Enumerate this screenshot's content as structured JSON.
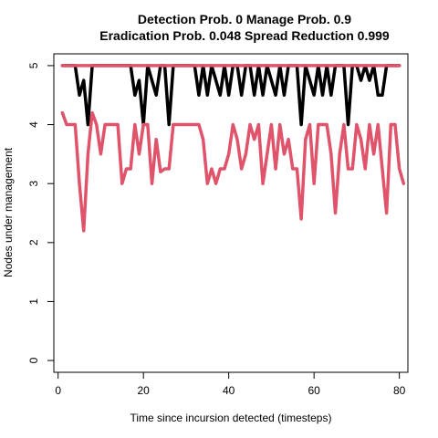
{
  "chart_data": {
    "type": "line",
    "title_lines": [
      "Detection Prob. 0 Manage Prob. 0.9",
      "Eradication Prob. 0.048 Spread Reduction 0.999"
    ],
    "xlabel": "Time since incursion detected (timesteps)",
    "ylabel": "Nodes under management",
    "xlim": [
      -1,
      82
    ],
    "ylim": [
      -0.2,
      5.2
    ],
    "x_ticks": [
      0,
      20,
      40,
      60,
      80
    ],
    "y_ticks": [
      0,
      1,
      2,
      3,
      4,
      5
    ],
    "grid": false,
    "legend": "none",
    "series": [
      {
        "color": "#000000",
        "values": [
          5,
          5,
          5,
          5,
          4.5,
          4.75,
          4,
          5,
          5,
          5,
          5,
          5,
          5,
          5,
          5,
          5,
          5,
          4.5,
          4.75,
          4,
          5,
          4.75,
          4.5,
          5,
          5,
          4,
          5,
          5,
          5,
          5,
          5,
          5,
          4.5,
          5,
          4.5,
          5,
          4.75,
          4.5,
          5,
          4.5,
          5,
          5,
          4.5,
          5,
          5,
          4.5,
          5,
          4.5,
          5,
          4.75,
          4.5,
          5,
          4.5,
          5,
          5,
          5,
          4,
          5,
          4.75,
          4.5,
          5,
          4.5,
          5,
          4.5,
          5,
          5,
          5,
          4,
          5,
          5,
          4.75,
          5,
          4.75,
          5,
          4.5,
          4.5,
          5,
          5,
          5,
          5
        ]
      },
      {
        "color": "#DF536B",
        "values": [
          4.2,
          4,
          4,
          4,
          3,
          2.2,
          3.5,
          4.2,
          4,
          3.5,
          4,
          4,
          4,
          4,
          3,
          3.25,
          3.25,
          4,
          3.5,
          4,
          4,
          3,
          3.75,
          3.2,
          3.25,
          3.25,
          4,
          4,
          4,
          4,
          4,
          4,
          4,
          3.75,
          3,
          3.25,
          3,
          3.25,
          3.25,
          3.5,
          4,
          3.75,
          3.25,
          3.5,
          4,
          3.75,
          4,
          3,
          3.5,
          4,
          3.25,
          4,
          3.5,
          3.75,
          3.25,
          3.25,
          2.4,
          3.75,
          4,
          3,
          4,
          4,
          4,
          3.5,
          2.5,
          3.5,
          4,
          3.25,
          3.25,
          4,
          3.75,
          3.25,
          4,
          3.5,
          4,
          3.25,
          2.5,
          4,
          4,
          3.25,
          3
        ]
      },
      {
        "color": "#DF536B",
        "values": [
          5,
          5,
          5,
          5,
          5,
          5,
          5,
          5,
          5,
          5,
          5,
          5,
          5,
          5,
          5,
          5,
          5,
          5,
          5,
          5,
          5,
          5,
          5,
          5,
          5,
          5,
          5,
          5,
          5,
          5,
          5,
          5,
          5,
          5,
          5,
          5,
          5,
          5,
          5,
          5,
          5,
          5,
          5,
          5,
          5,
          5,
          5,
          5,
          5,
          5,
          5,
          5,
          5,
          5,
          5,
          5,
          5,
          5,
          5,
          5,
          5,
          5,
          5,
          5,
          5,
          5,
          5,
          5,
          5,
          5,
          5,
          5,
          5,
          5,
          5,
          5,
          5,
          5,
          5,
          5
        ]
      }
    ]
  }
}
